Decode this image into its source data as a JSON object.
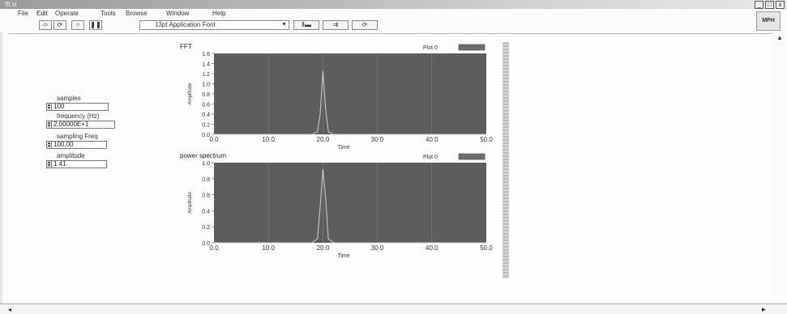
{
  "window": {
    "title": "fft.vi",
    "controls": [
      "_",
      "□",
      "x"
    ]
  },
  "menu": [
    "File",
    "Edit",
    "Operate",
    "Tools",
    "Browse",
    "Window",
    "Help"
  ],
  "toolbar": {
    "run_icon": "run-arrow-icon",
    "font_select": "13pt Application Font",
    "align_label": "Ⅱ▬",
    "distribute_label": "⇉",
    "reorder_label": "⟳"
  },
  "help_icon_text": "MPH",
  "controls": {
    "samples": {
      "label": "samples",
      "value": "100"
    },
    "frequency": {
      "label": "frequency (Hz)",
      "value": "2.00000E+1"
    },
    "sampling_freq": {
      "label": "sampling Freq",
      "value": "100.00"
    },
    "amplitude": {
      "label": "amplitude",
      "value": "1.41"
    }
  },
  "graphs": [
    {
      "title": "FFT",
      "legend": "Plot 0",
      "xlabel": "Time",
      "ylabel": "Amplitude",
      "yticks": [
        "1.6",
        "1.4",
        "1.2",
        "1.0",
        "0.8",
        "0.6",
        "0.4",
        "0.2",
        "0.0"
      ],
      "xticks": [
        "0.0",
        "10.0",
        "20.0",
        "30.0",
        "40.0",
        "50.0"
      ]
    },
    {
      "title": "power spectrum",
      "legend": "Plot 0",
      "xlabel": "Time",
      "ylabel": "Amplitude",
      "yticks": [
        "1.0",
        "0.8",
        "0.6",
        "0.4",
        "0.2",
        "0.0"
      ],
      "xticks": [
        "0.0",
        "10.0",
        "20.0",
        "30.0",
        "40.0",
        "50.0"
      ]
    }
  ],
  "chart_data": [
    {
      "type": "line",
      "title": "FFT",
      "xlabel": "Time",
      "ylabel": "Amplitude",
      "xlim": [
        0,
        50
      ],
      "ylim": [
        0,
        1.6
      ],
      "series": [
        {
          "name": "Plot 0",
          "x": [
            0,
            18,
            19,
            19.5,
            20,
            20.5,
            21,
            22,
            50
          ],
          "y": [
            0,
            0,
            0.05,
            0.4,
            1.25,
            0.5,
            0.05,
            0,
            0
          ]
        }
      ]
    },
    {
      "type": "line",
      "title": "power spectrum",
      "xlabel": "Time",
      "ylabel": "Amplitude",
      "xlim": [
        0,
        50
      ],
      "ylim": [
        0,
        1.0
      ],
      "series": [
        {
          "name": "Plot 0",
          "x": [
            0,
            18,
            19,
            19.5,
            20,
            20.5,
            21,
            22,
            50
          ],
          "y": [
            0,
            0,
            0.05,
            0.45,
            0.92,
            0.55,
            0.05,
            0,
            0
          ]
        }
      ]
    }
  ],
  "colors": {
    "plot_background": "#5d5d5d",
    "grid": "#7a7a7a",
    "trace": "#c8c8c8",
    "legend_swatch": "#6e6e6e"
  }
}
